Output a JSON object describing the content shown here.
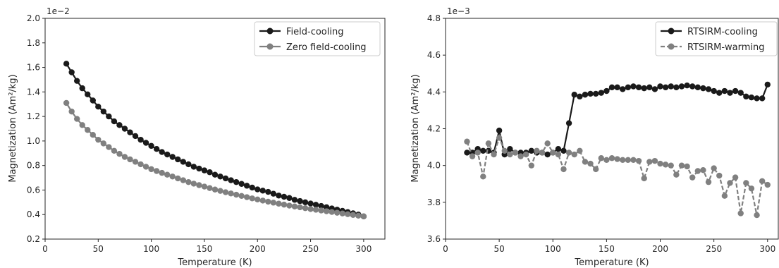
{
  "chart_data": [
    {
      "type": "line",
      "xlabel": "Temperature (K)",
      "ylabel": "Magnetization (Am²/kg)",
      "offset_label": "1e−2",
      "xlim": [
        0,
        320
      ],
      "ylim": [
        0.2,
        2.0
      ],
      "xticks": [
        0,
        50,
        100,
        150,
        200,
        250,
        300
      ],
      "xtick_labels": [
        "0",
        "50",
        "100",
        "150",
        "200",
        "250",
        "300"
      ],
      "yticks": [
        0.2,
        0.4,
        0.6,
        0.8,
        1.0,
        1.2,
        1.4,
        1.6,
        1.8,
        2.0
      ],
      "ytick_labels": [
        "0.2",
        "0.4",
        "0.6",
        "0.8",
        "1.0",
        "1.2",
        "1.4",
        "1.6",
        "1.8",
        "2.0"
      ],
      "grid": false,
      "legend_position": "top-right",
      "x": [
        20,
        25,
        30,
        35,
        40,
        45,
        50,
        55,
        60,
        65,
        70,
        75,
        80,
        85,
        90,
        95,
        100,
        105,
        110,
        115,
        120,
        125,
        130,
        135,
        140,
        145,
        150,
        155,
        160,
        165,
        170,
        175,
        180,
        185,
        190,
        195,
        200,
        205,
        210,
        215,
        220,
        225,
        230,
        235,
        240,
        245,
        250,
        255,
        260,
        265,
        270,
        275,
        280,
        285,
        290,
        295,
        300
      ],
      "series": [
        {
          "name": "Field-cooling",
          "color": "#1a1a1a",
          "linestyle": "solid",
          "values": [
            1.63,
            1.56,
            1.49,
            1.43,
            1.38,
            1.33,
            1.28,
            1.24,
            1.2,
            1.16,
            1.13,
            1.1,
            1.07,
            1.04,
            1.01,
            0.985,
            0.96,
            0.935,
            0.91,
            0.89,
            0.87,
            0.85,
            0.83,
            0.81,
            0.79,
            0.775,
            0.76,
            0.745,
            0.725,
            0.71,
            0.695,
            0.68,
            0.665,
            0.65,
            0.635,
            0.62,
            0.605,
            0.595,
            0.585,
            0.57,
            0.555,
            0.545,
            0.535,
            0.52,
            0.51,
            0.5,
            0.49,
            0.48,
            0.47,
            0.46,
            0.45,
            0.44,
            0.43,
            0.42,
            0.41,
            0.4,
            0.385
          ]
        },
        {
          "name": "Zero field-cooling",
          "color": "#808080",
          "linestyle": "solid",
          "values": [
            1.31,
            1.24,
            1.18,
            1.13,
            1.09,
            1.05,
            1.01,
            0.98,
            0.95,
            0.92,
            0.895,
            0.87,
            0.85,
            0.83,
            0.81,
            0.79,
            0.77,
            0.755,
            0.74,
            0.725,
            0.71,
            0.695,
            0.68,
            0.665,
            0.652,
            0.64,
            0.628,
            0.616,
            0.604,
            0.593,
            0.582,
            0.572,
            0.562,
            0.552,
            0.542,
            0.532,
            0.523,
            0.514,
            0.505,
            0.497,
            0.489,
            0.481,
            0.473,
            0.466,
            0.459,
            0.452,
            0.445,
            0.439,
            0.433,
            0.427,
            0.421,
            0.415,
            0.409,
            0.403,
            0.397,
            0.391,
            0.385
          ]
        }
      ]
    },
    {
      "type": "line",
      "xlabel": "Temperature (K)",
      "ylabel": "Magnetization (Am²/kg)",
      "offset_label": "1e−3",
      "xlim": [
        0,
        310
      ],
      "ylim": [
        3.6,
        4.8
      ],
      "xticks": [
        0,
        50,
        100,
        150,
        200,
        250,
        300
      ],
      "xtick_labels": [
        "0",
        "50",
        "100",
        "150",
        "200",
        "250",
        "300"
      ],
      "yticks": [
        3.6,
        3.8,
        4.0,
        4.2,
        4.4,
        4.6,
        4.8
      ],
      "ytick_labels": [
        "3.6",
        "3.8",
        "4.0",
        "4.2",
        "4.4",
        "4.6",
        "4.8"
      ],
      "grid": false,
      "legend_position": "top-right",
      "x": [
        20,
        25,
        30,
        35,
        40,
        45,
        50,
        55,
        60,
        65,
        70,
        75,
        80,
        85,
        90,
        95,
        100,
        105,
        110,
        115,
        120,
        125,
        130,
        135,
        140,
        145,
        150,
        155,
        160,
        165,
        170,
        175,
        180,
        185,
        190,
        195,
        200,
        205,
        210,
        215,
        220,
        225,
        230,
        235,
        240,
        245,
        250,
        255,
        260,
        265,
        270,
        275,
        280,
        285,
        290,
        295,
        300
      ],
      "series": [
        {
          "name": "RTSIRM-cooling",
          "color": "#1a1a1a",
          "linestyle": "solid",
          "values": [
            4.07,
            4.07,
            4.09,
            4.08,
            4.08,
            4.07,
            4.19,
            4.06,
            4.09,
            4.07,
            4.07,
            4.07,
            4.08,
            4.07,
            4.07,
            4.06,
            4.07,
            4.09,
            4.08,
            4.23,
            4.385,
            4.375,
            4.385,
            4.39,
            4.39,
            4.395,
            4.405,
            4.425,
            4.425,
            4.415,
            4.425,
            4.43,
            4.425,
            4.42,
            4.425,
            4.415,
            4.43,
            4.425,
            4.43,
            4.425,
            4.43,
            4.435,
            4.43,
            4.425,
            4.42,
            4.415,
            4.405,
            4.395,
            4.405,
            4.395,
            4.405,
            4.395,
            4.375,
            4.37,
            4.365,
            4.365,
            4.44
          ]
        },
        {
          "name": "RTSIRM-warming",
          "color": "#808080",
          "linestyle": "dashed",
          "values": [
            4.13,
            4.05,
            4.07,
            3.94,
            4.12,
            4.06,
            4.15,
            4.08,
            4.06,
            4.07,
            4.05,
            4.06,
            4.0,
            4.08,
            4.07,
            4.12,
            4.07,
            4.06,
            3.98,
            4.07,
            4.06,
            4.08,
            4.02,
            4.01,
            3.98,
            4.04,
            4.03,
            4.04,
            4.035,
            4.03,
            4.03,
            4.03,
            4.025,
            3.93,
            4.02,
            4.025,
            4.01,
            4.005,
            4.0,
            3.95,
            4.0,
            3.995,
            3.935,
            3.97,
            3.975,
            3.91,
            3.985,
            3.945,
            3.835,
            3.905,
            3.935,
            3.74,
            3.905,
            3.875,
            3.73,
            3.915,
            3.895
          ]
        }
      ]
    }
  ]
}
